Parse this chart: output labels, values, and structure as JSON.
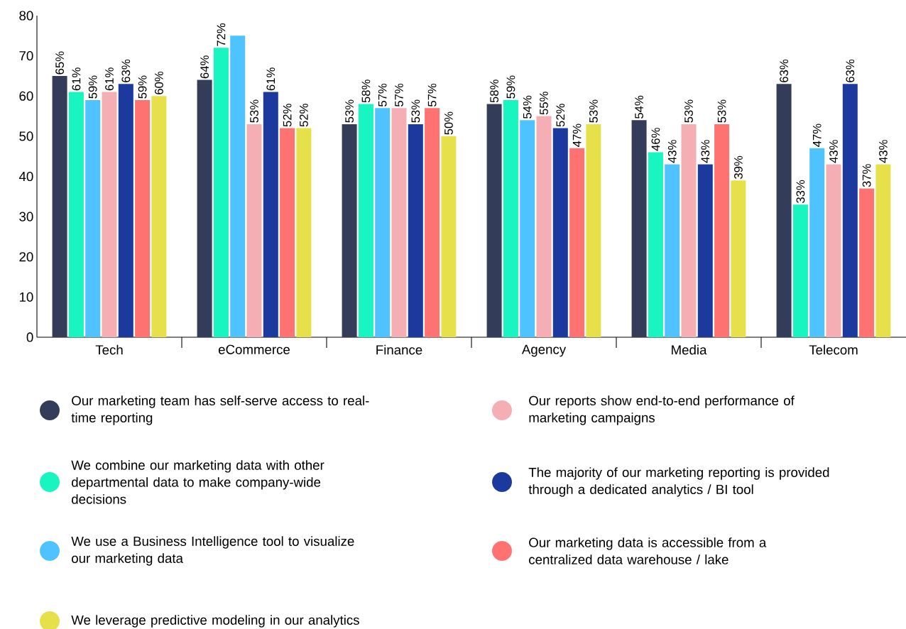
{
  "chart_data": {
    "type": "bar",
    "categories": [
      "Tech",
      "eCommerce",
      "Finance",
      "Agency",
      "Media",
      "Telecom"
    ],
    "ylim": [
      0,
      80
    ],
    "yticks": [
      0,
      10,
      20,
      30,
      40,
      50,
      60,
      70,
      80
    ],
    "grid": false,
    "legend": "bottom",
    "series": [
      {
        "name": "Our marketing team has self-serve access to real-time reporting",
        "color": "#333d5a",
        "values": [
          65,
          64,
          53,
          58,
          54,
          63
        ],
        "value_labels": [
          "65%",
          "64%",
          "53%",
          "58%",
          "54%",
          "63%"
        ]
      },
      {
        "name": "We combine our marketing data with other departmental data to make company-wide decisions",
        "color": "#19f5c0",
        "values": [
          61,
          72,
          58,
          59,
          46,
          33
        ],
        "value_labels": [
          "61%",
          "72%",
          "58%",
          "59%",
          "46%",
          "33%"
        ]
      },
      {
        "name": "We use a Business Intelligence tool to visualize our marketing data",
        "color": "#4fc3ff",
        "values": [
          59,
          75,
          57,
          54,
          43,
          47
        ],
        "value_labels": [
          "59%",
          null,
          "57%",
          "54%",
          "43%",
          "47%"
        ]
      },
      {
        "name": "Our reports show end-to-end performance of marketing campaigns",
        "color": "#f4aeb4",
        "values": [
          61,
          53,
          57,
          55,
          53,
          43
        ],
        "value_labels": [
          "61%",
          "53%",
          "57%",
          "55%",
          "53%",
          "43%"
        ]
      },
      {
        "name": "The majority of our marketing reporting is provided through a dedicated analytics / BI tool",
        "color": "#1c3a9e",
        "values": [
          63,
          61,
          53,
          52,
          43,
          63
        ],
        "value_labels": [
          "63%",
          "61%",
          "53%",
          "52%",
          "43%",
          "63%"
        ]
      },
      {
        "name": "Our marketing data is accessible from a centralized data warehouse / lake",
        "color": "#ff7272",
        "values": [
          59,
          52,
          57,
          47,
          53,
          37
        ],
        "value_labels": [
          "59%",
          "52%",
          "57%",
          "47%",
          "53%",
          "37%"
        ]
      },
      {
        "name": "We leverage predictive modeling in our analytics",
        "color": "#e6e04a",
        "values": [
          60,
          52,
          50,
          53,
          39,
          43
        ],
        "value_labels": [
          "60%",
          "52%",
          "50%",
          "53%",
          "39%",
          "43%"
        ]
      }
    ]
  }
}
